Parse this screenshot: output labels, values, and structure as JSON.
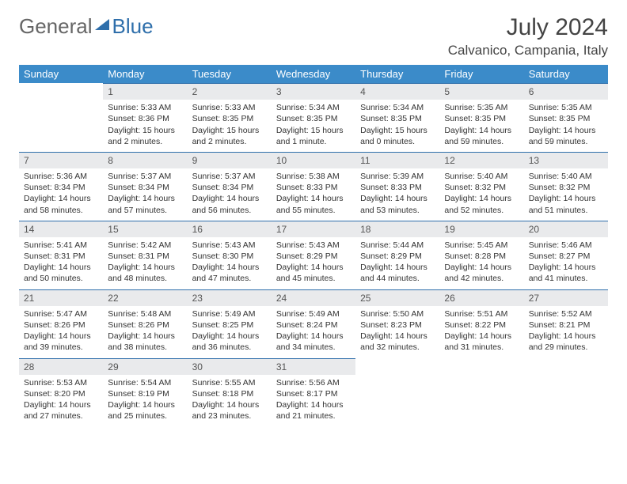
{
  "brand": {
    "part1": "General",
    "part2": "Blue"
  },
  "title": "July 2024",
  "location": "Calvanico, Campania, Italy",
  "colors": {
    "header_bg": "#3b8bc9",
    "daynum_bg": "#e9eaec",
    "row_border": "#2f6fab"
  },
  "weekdays": [
    "Sunday",
    "Monday",
    "Tuesday",
    "Wednesday",
    "Thursday",
    "Friday",
    "Saturday"
  ],
  "weeks": [
    [
      {
        "n": "",
        "sr": "",
        "ss": "",
        "dl": ""
      },
      {
        "n": "1",
        "sr": "Sunrise: 5:33 AM",
        "ss": "Sunset: 8:36 PM",
        "dl": "Daylight: 15 hours and 2 minutes."
      },
      {
        "n": "2",
        "sr": "Sunrise: 5:33 AM",
        "ss": "Sunset: 8:35 PM",
        "dl": "Daylight: 15 hours and 2 minutes."
      },
      {
        "n": "3",
        "sr": "Sunrise: 5:34 AM",
        "ss": "Sunset: 8:35 PM",
        "dl": "Daylight: 15 hours and 1 minute."
      },
      {
        "n": "4",
        "sr": "Sunrise: 5:34 AM",
        "ss": "Sunset: 8:35 PM",
        "dl": "Daylight: 15 hours and 0 minutes."
      },
      {
        "n": "5",
        "sr": "Sunrise: 5:35 AM",
        "ss": "Sunset: 8:35 PM",
        "dl": "Daylight: 14 hours and 59 minutes."
      },
      {
        "n": "6",
        "sr": "Sunrise: 5:35 AM",
        "ss": "Sunset: 8:35 PM",
        "dl": "Daylight: 14 hours and 59 minutes."
      }
    ],
    [
      {
        "n": "7",
        "sr": "Sunrise: 5:36 AM",
        "ss": "Sunset: 8:34 PM",
        "dl": "Daylight: 14 hours and 58 minutes."
      },
      {
        "n": "8",
        "sr": "Sunrise: 5:37 AM",
        "ss": "Sunset: 8:34 PM",
        "dl": "Daylight: 14 hours and 57 minutes."
      },
      {
        "n": "9",
        "sr": "Sunrise: 5:37 AM",
        "ss": "Sunset: 8:34 PM",
        "dl": "Daylight: 14 hours and 56 minutes."
      },
      {
        "n": "10",
        "sr": "Sunrise: 5:38 AM",
        "ss": "Sunset: 8:33 PM",
        "dl": "Daylight: 14 hours and 55 minutes."
      },
      {
        "n": "11",
        "sr": "Sunrise: 5:39 AM",
        "ss": "Sunset: 8:33 PM",
        "dl": "Daylight: 14 hours and 53 minutes."
      },
      {
        "n": "12",
        "sr": "Sunrise: 5:40 AM",
        "ss": "Sunset: 8:32 PM",
        "dl": "Daylight: 14 hours and 52 minutes."
      },
      {
        "n": "13",
        "sr": "Sunrise: 5:40 AM",
        "ss": "Sunset: 8:32 PM",
        "dl": "Daylight: 14 hours and 51 minutes."
      }
    ],
    [
      {
        "n": "14",
        "sr": "Sunrise: 5:41 AM",
        "ss": "Sunset: 8:31 PM",
        "dl": "Daylight: 14 hours and 50 minutes."
      },
      {
        "n": "15",
        "sr": "Sunrise: 5:42 AM",
        "ss": "Sunset: 8:31 PM",
        "dl": "Daylight: 14 hours and 48 minutes."
      },
      {
        "n": "16",
        "sr": "Sunrise: 5:43 AM",
        "ss": "Sunset: 8:30 PM",
        "dl": "Daylight: 14 hours and 47 minutes."
      },
      {
        "n": "17",
        "sr": "Sunrise: 5:43 AM",
        "ss": "Sunset: 8:29 PM",
        "dl": "Daylight: 14 hours and 45 minutes."
      },
      {
        "n": "18",
        "sr": "Sunrise: 5:44 AM",
        "ss": "Sunset: 8:29 PM",
        "dl": "Daylight: 14 hours and 44 minutes."
      },
      {
        "n": "19",
        "sr": "Sunrise: 5:45 AM",
        "ss": "Sunset: 8:28 PM",
        "dl": "Daylight: 14 hours and 42 minutes."
      },
      {
        "n": "20",
        "sr": "Sunrise: 5:46 AM",
        "ss": "Sunset: 8:27 PM",
        "dl": "Daylight: 14 hours and 41 minutes."
      }
    ],
    [
      {
        "n": "21",
        "sr": "Sunrise: 5:47 AM",
        "ss": "Sunset: 8:26 PM",
        "dl": "Daylight: 14 hours and 39 minutes."
      },
      {
        "n": "22",
        "sr": "Sunrise: 5:48 AM",
        "ss": "Sunset: 8:26 PM",
        "dl": "Daylight: 14 hours and 38 minutes."
      },
      {
        "n": "23",
        "sr": "Sunrise: 5:49 AM",
        "ss": "Sunset: 8:25 PM",
        "dl": "Daylight: 14 hours and 36 minutes."
      },
      {
        "n": "24",
        "sr": "Sunrise: 5:49 AM",
        "ss": "Sunset: 8:24 PM",
        "dl": "Daylight: 14 hours and 34 minutes."
      },
      {
        "n": "25",
        "sr": "Sunrise: 5:50 AM",
        "ss": "Sunset: 8:23 PM",
        "dl": "Daylight: 14 hours and 32 minutes."
      },
      {
        "n": "26",
        "sr": "Sunrise: 5:51 AM",
        "ss": "Sunset: 8:22 PM",
        "dl": "Daylight: 14 hours and 31 minutes."
      },
      {
        "n": "27",
        "sr": "Sunrise: 5:52 AM",
        "ss": "Sunset: 8:21 PM",
        "dl": "Daylight: 14 hours and 29 minutes."
      }
    ],
    [
      {
        "n": "28",
        "sr": "Sunrise: 5:53 AM",
        "ss": "Sunset: 8:20 PM",
        "dl": "Daylight: 14 hours and 27 minutes."
      },
      {
        "n": "29",
        "sr": "Sunrise: 5:54 AM",
        "ss": "Sunset: 8:19 PM",
        "dl": "Daylight: 14 hours and 25 minutes."
      },
      {
        "n": "30",
        "sr": "Sunrise: 5:55 AM",
        "ss": "Sunset: 8:18 PM",
        "dl": "Daylight: 14 hours and 23 minutes."
      },
      {
        "n": "31",
        "sr": "Sunrise: 5:56 AM",
        "ss": "Sunset: 8:17 PM",
        "dl": "Daylight: 14 hours and 21 minutes."
      },
      {
        "n": "",
        "sr": "",
        "ss": "",
        "dl": ""
      },
      {
        "n": "",
        "sr": "",
        "ss": "",
        "dl": ""
      },
      {
        "n": "",
        "sr": "",
        "ss": "",
        "dl": ""
      }
    ]
  ]
}
